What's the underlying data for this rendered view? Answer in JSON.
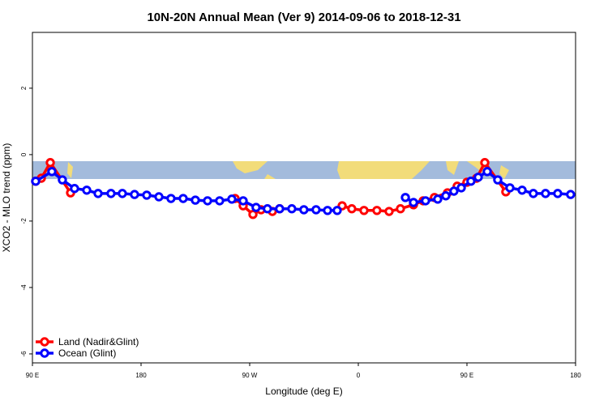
{
  "chart_data": {
    "type": "line",
    "title": "10N-20N Annual Mean (Ver 9)   2014-09-06 to 2018-12-31",
    "x_label": "Longitude (deg E)",
    "y_label": "XCO2 - MLO trend (ppm)",
    "xlim": [
      90,
      540
    ],
    "ylim": [
      -6.27,
      3.68
    ],
    "xticks": [
      {
        "value": 90,
        "label": "90 E"
      },
      180,
      {
        "value": 270,
        "label": "90 W"
      },
      {
        "value": 360,
        "label": "0"
      },
      {
        "value": 450,
        "label": "90 E"
      },
      {
        "value": 540,
        "label": "180"
      }
    ],
    "yticks": [
      2,
      0,
      -2,
      -4,
      -6
    ],
    "legend": "bottom-left",
    "series": [
      {
        "name": "Land (Nadir&Glint)",
        "color": "#ff0000",
        "x": [
          92.7,
          97.4,
          104.8,
          121.6,
          null,
          257.9,
          264.6,
          272.7,
          279.4,
          288.8,
          294.8,
          null,
          346.6,
          354.6,
          364.7,
          375.4,
          385.5,
          394.9,
          405.7,
          413.7,
          423.1,
          433.9,
          441.9,
          450,
          458,
          464.8,
          482.2
        ],
        "values": [
          -0.8,
          -0.71,
          -0.24,
          -1.15,
          null,
          -1.32,
          -1.54,
          -1.8,
          -1.66,
          -1.71,
          -1.63,
          null,
          -1.54,
          -1.63,
          -1.68,
          -1.68,
          -1.71,
          -1.63,
          -1.51,
          -1.39,
          -1.29,
          -1.15,
          -0.95,
          -0.83,
          -0.71,
          -0.24,
          -1.12
        ]
      },
      {
        "name": "Ocean (Glint)",
        "color": "#0000ff",
        "x": [
          92.7,
          106.1,
          114.8,
          124.9,
          135,
          144.4,
          155.1,
          164.5,
          174.6,
          184.7,
          194.8,
          204.8,
          214.9,
          225,
          235.1,
          245.1,
          255.2,
          264.6,
          275.3,
          284.7,
          294.8,
          304.9,
          314.9,
          325,
          334.5,
          342.5,
          null,
          399,
          405.7,
          415.7,
          425.8,
          432.5,
          439.2,
          445.3,
          453.3,
          459.4,
          466.8,
          475.5,
          485.6,
          495.7,
          505,
          515.1,
          525.2,
          535.9
        ],
        "values": [
          -0.8,
          -0.51,
          -0.76,
          -1.02,
          -1.07,
          -1.17,
          -1.17,
          -1.17,
          -1.2,
          -1.22,
          -1.27,
          -1.32,
          -1.32,
          -1.37,
          -1.39,
          -1.39,
          -1.34,
          -1.39,
          -1.59,
          -1.63,
          -1.63,
          -1.63,
          -1.66,
          -1.66,
          -1.68,
          -1.68,
          null,
          -1.29,
          -1.44,
          -1.39,
          -1.34,
          -1.24,
          -1.1,
          -1.0,
          -0.8,
          -0.68,
          -0.51,
          -0.76,
          -1.0,
          -1.07,
          -1.17,
          -1.17,
          -1.17,
          -1.2
        ]
      }
    ]
  }
}
